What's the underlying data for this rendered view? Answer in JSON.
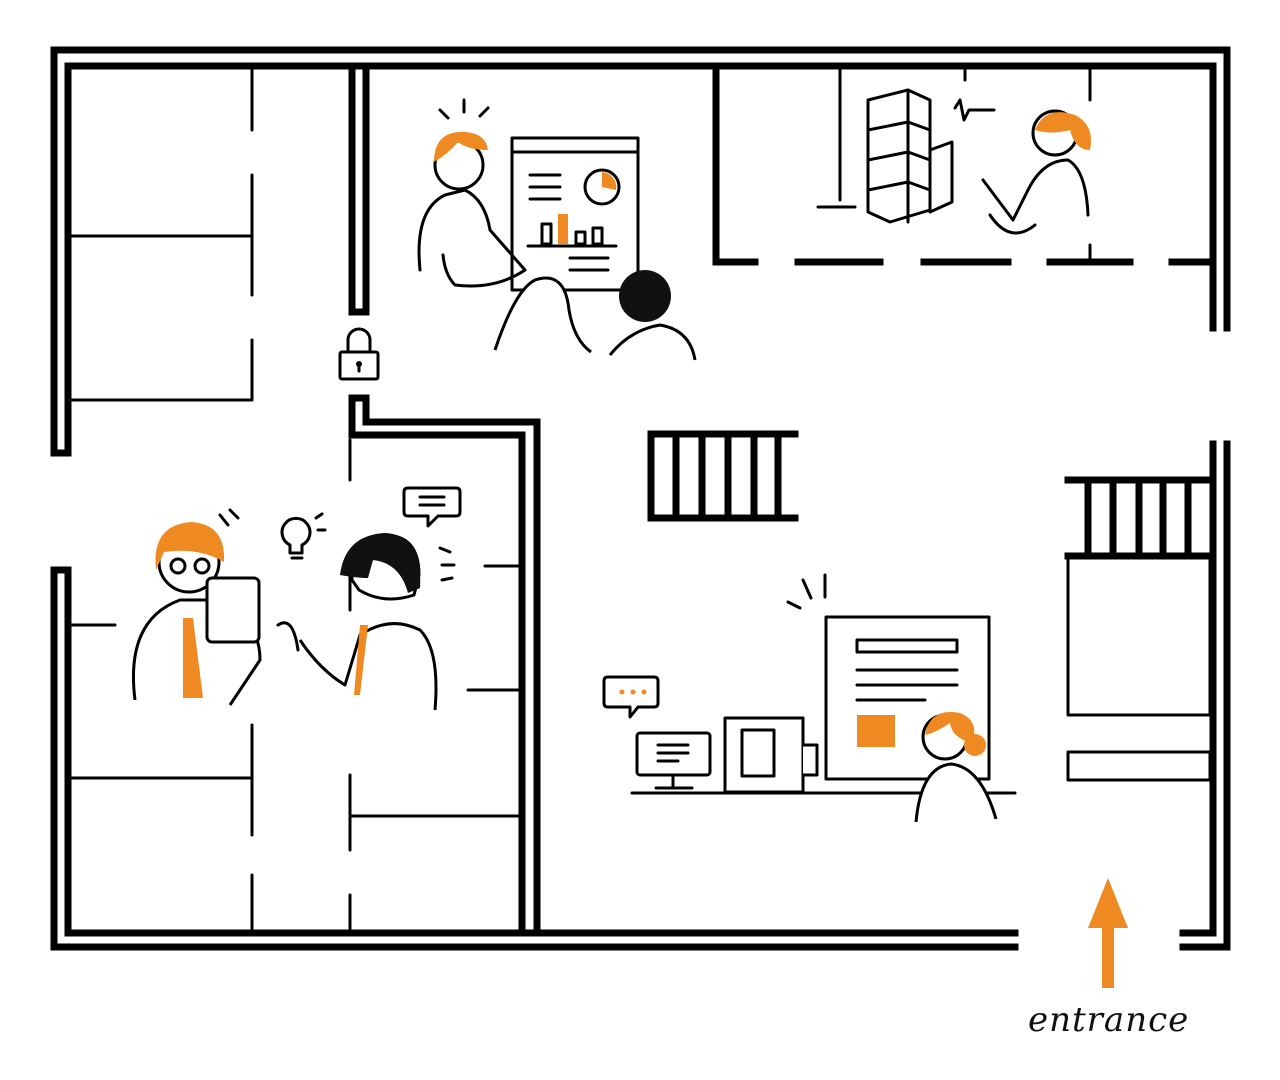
{
  "entrance_label": "entrance",
  "colors": {
    "accent": "#ef8a22",
    "line": "#000000",
    "background": "#ffffff"
  },
  "icons": [
    "lock-icon",
    "lightbulb-icon",
    "chat-bubble-icon",
    "arrow-up-icon"
  ]
}
